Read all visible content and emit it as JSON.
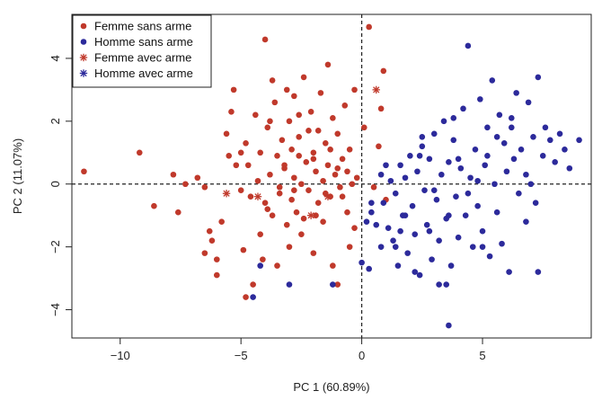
{
  "chart_data": {
    "type": "scatter",
    "xlabel": "PC 1 (60.89%)",
    "ylabel": "PC 2 (11.07%)",
    "xlim": [
      -12,
      9.5
    ],
    "ylim": [
      -4.9,
      5.4
    ],
    "x_ticks": [
      -10,
      -5,
      0,
      5
    ],
    "y_ticks": [
      -4,
      -2,
      0,
      2,
      4
    ],
    "x_tick_labels": [
      "−10",
      "−5",
      "0",
      "5"
    ],
    "y_tick_labels": [
      "−4",
      "−2",
      "0",
      "2",
      "4"
    ],
    "reference_lines": [
      {
        "axis": "x",
        "value": 0,
        "style": "dashed"
      },
      {
        "axis": "y",
        "value": 0,
        "style": "dashed"
      }
    ],
    "legend": {
      "placement": "top-left",
      "entries": [
        {
          "label": "Femme sans arme",
          "marker": "dot",
          "color": "#c0392b"
        },
        {
          "label": "Homme sans arme",
          "marker": "dot",
          "color": "#2c2a9b"
        },
        {
          "label": "Femme avec arme",
          "marker": "asterisk",
          "color": "#c0392b"
        },
        {
          "label": "Homme avec arme",
          "marker": "asterisk",
          "color": "#2c2a9b"
        }
      ]
    },
    "colors": {
      "femme": "#c0392b",
      "homme": "#2c2a9b"
    },
    "series": [
      {
        "name": "Femme sans arme",
        "marker": "dot",
        "color": "#c0392b",
        "points": [
          [
            -11.5,
            0.4
          ],
          [
            -9.2,
            1.0
          ],
          [
            -8.6,
            -0.7
          ],
          [
            -7.8,
            0.3
          ],
          [
            -7.6,
            -0.9
          ],
          [
            -7.3,
            0.0
          ],
          [
            -6.8,
            0.2
          ],
          [
            -6.5,
            -0.1
          ],
          [
            -6.3,
            -1.5
          ],
          [
            -6.2,
            -1.8
          ],
          [
            -6.0,
            -2.4
          ],
          [
            -6.0,
            -2.9
          ],
          [
            -5.8,
            -1.2
          ],
          [
            -5.6,
            1.6
          ],
          [
            -5.5,
            0.9
          ],
          [
            -5.3,
            3.0
          ],
          [
            -5.2,
            0.6
          ],
          [
            -5.0,
            -0.2
          ],
          [
            -4.9,
            -2.1
          ],
          [
            -4.8,
            1.3
          ],
          [
            -4.7,
            0.6
          ],
          [
            -4.6,
            -0.4
          ],
          [
            -4.5,
            -3.2
          ],
          [
            -4.4,
            2.2
          ],
          [
            -4.3,
            0.1
          ],
          [
            -4.2,
            -1.6
          ],
          [
            -4.1,
            -2.4
          ],
          [
            -4.0,
            4.6
          ],
          [
            -3.9,
            1.8
          ],
          [
            -3.9,
            -0.8
          ],
          [
            -3.8,
            0.3
          ],
          [
            -3.7,
            -1.0
          ],
          [
            -3.6,
            2.6
          ],
          [
            -3.5,
            -2.6
          ],
          [
            -3.5,
            0.9
          ],
          [
            -3.4,
            -0.3
          ],
          [
            -3.3,
            1.4
          ],
          [
            -3.2,
            0.5
          ],
          [
            -3.1,
            3.0
          ],
          [
            -3.1,
            -1.3
          ],
          [
            -3.0,
            2.0
          ],
          [
            -2.9,
            -0.5
          ],
          [
            -2.9,
            1.1
          ],
          [
            -2.8,
            0.2
          ],
          [
            -2.8,
            2.8
          ],
          [
            -2.7,
            -0.9
          ],
          [
            -2.6,
            1.5
          ],
          [
            -2.5,
            0.0
          ],
          [
            -2.5,
            -1.6
          ],
          [
            -2.4,
            3.4
          ],
          [
            -2.3,
            0.7
          ],
          [
            -2.2,
            -0.2
          ],
          [
            -2.1,
            2.3
          ],
          [
            -2.0,
            1.0
          ],
          [
            -2.0,
            -2.2
          ],
          [
            -1.9,
            0.4
          ],
          [
            -1.8,
            1.7
          ],
          [
            -1.8,
            -0.6
          ],
          [
            -1.7,
            2.9
          ],
          [
            -1.6,
            0.1
          ],
          [
            -1.6,
            -1.2
          ],
          [
            -1.5,
            1.3
          ],
          [
            -1.4,
            3.8
          ],
          [
            -1.4,
            0.6
          ],
          [
            -1.3,
            -0.4
          ],
          [
            -1.2,
            2.1
          ],
          [
            -1.2,
            -2.6
          ],
          [
            -1.1,
            0.3
          ],
          [
            -1.0,
            1.6
          ],
          [
            -1.0,
            -3.2
          ],
          [
            -0.9,
            -0.1
          ],
          [
            -0.8,
            0.8
          ],
          [
            -0.7,
            2.5
          ],
          [
            -0.6,
            -0.9
          ],
          [
            -0.5,
            1.1
          ],
          [
            -0.5,
            -2.0
          ],
          [
            -0.4,
            0.0
          ],
          [
            -0.3,
            3.0
          ],
          [
            -0.3,
            -1.4
          ],
          [
            -0.2,
            0.2
          ],
          [
            0.1,
            1.8
          ],
          [
            0.3,
            5.0
          ],
          [
            0.5,
            -0.1
          ],
          [
            0.7,
            1.2
          ],
          [
            0.8,
            2.4
          ],
          [
            1.0,
            -0.5
          ],
          [
            0.9,
            3.6
          ],
          [
            -3.4,
            -0.1
          ],
          [
            -2.6,
            0.9
          ],
          [
            -4.8,
            -3.6
          ],
          [
            -6.5,
            -2.2
          ],
          [
            -3.0,
            -2.0
          ],
          [
            -1.9,
            -1.0
          ],
          [
            -5.4,
            2.3
          ],
          [
            -4.2,
            1.0
          ],
          [
            -2.2,
            1.7
          ],
          [
            -0.8,
            -0.4
          ],
          [
            -3.7,
            3.3
          ],
          [
            -2.4,
            -1.1
          ],
          [
            -1.5,
            -0.3
          ],
          [
            -4.0,
            -0.6
          ],
          [
            -3.2,
            0.6
          ],
          [
            -2.0,
            0.8
          ],
          [
            -1.0,
            0.5
          ],
          [
            -5.0,
            1.0
          ],
          [
            -3.8,
            2.0
          ],
          [
            -2.6,
            2.2
          ],
          [
            -1.3,
            1.1
          ],
          [
            -0.6,
            0.4
          ],
          [
            -2.8,
            -0.2
          ]
        ]
      },
      {
        "name": "Homme sans arme",
        "marker": "dot",
        "color": "#2c2a9b",
        "points": [
          [
            0.2,
            -1.2
          ],
          [
            0.4,
            -0.9
          ],
          [
            0.6,
            -1.3
          ],
          [
            0.8,
            -2.0
          ],
          [
            0.9,
            -0.6
          ],
          [
            1.1,
            -1.4
          ],
          [
            1.2,
            0.1
          ],
          [
            1.3,
            -1.8
          ],
          [
            1.4,
            -0.3
          ],
          [
            1.5,
            -2.6
          ],
          [
            1.6,
            0.6
          ],
          [
            1.7,
            -1.0
          ],
          [
            1.8,
            0.2
          ],
          [
            1.9,
            -2.2
          ],
          [
            2.0,
            0.9
          ],
          [
            2.1,
            -0.7
          ],
          [
            2.2,
            -1.6
          ],
          [
            2.3,
            0.4
          ],
          [
            2.4,
            -2.9
          ],
          [
            2.5,
            1.2
          ],
          [
            2.6,
            -0.2
          ],
          [
            2.7,
            -1.3
          ],
          [
            2.8,
            0.8
          ],
          [
            2.9,
            -2.4
          ],
          [
            3.0,
            1.6
          ],
          [
            3.1,
            -0.5
          ],
          [
            3.2,
            -1.8
          ],
          [
            3.3,
            0.3
          ],
          [
            3.4,
            2.0
          ],
          [
            3.5,
            -1.1
          ],
          [
            3.6,
            0.7
          ],
          [
            3.7,
            -2.6
          ],
          [
            3.8,
            1.4
          ],
          [
            3.9,
            -0.4
          ],
          [
            4.0,
            -1.7
          ],
          [
            4.1,
            0.5
          ],
          [
            4.2,
            2.4
          ],
          [
            4.3,
            -1.0
          ],
          [
            4.4,
            4.4
          ],
          [
            4.5,
            0.2
          ],
          [
            4.6,
            -2.0
          ],
          [
            4.7,
            1.1
          ],
          [
            4.8,
            -0.7
          ],
          [
            4.9,
            2.7
          ],
          [
            5.0,
            -1.5
          ],
          [
            5.1,
            0.6
          ],
          [
            5.2,
            1.8
          ],
          [
            5.3,
            -2.3
          ],
          [
            5.4,
            3.3
          ],
          [
            5.5,
            0.0
          ],
          [
            5.6,
            -0.9
          ],
          [
            5.7,
            2.2
          ],
          [
            5.8,
            -1.9
          ],
          [
            5.9,
            1.3
          ],
          [
            6.0,
            0.4
          ],
          [
            6.1,
            -2.8
          ],
          [
            6.2,
            1.8
          ],
          [
            6.3,
            0.8
          ],
          [
            6.4,
            2.9
          ],
          [
            6.5,
            -0.3
          ],
          [
            6.6,
            1.1
          ],
          [
            6.8,
            0.3
          ],
          [
            6.9,
            2.6
          ],
          [
            7.1,
            1.5
          ],
          [
            7.2,
            -0.6
          ],
          [
            7.3,
            3.4
          ],
          [
            7.3,
            -2.8
          ],
          [
            7.5,
            0.9
          ],
          [
            7.6,
            1.8
          ],
          [
            7.8,
            1.4
          ],
          [
            8.0,
            0.7
          ],
          [
            8.2,
            1.6
          ],
          [
            8.4,
            1.1
          ],
          [
            8.6,
            0.5
          ],
          [
            9.0,
            1.4
          ],
          [
            -4.2,
            -2.6
          ],
          [
            -3.0,
            -3.2
          ],
          [
            -1.2,
            -3.2
          ],
          [
            -4.5,
            -3.6
          ],
          [
            0.0,
            -2.5
          ],
          [
            0.3,
            -2.7
          ],
          [
            3.6,
            -4.5
          ],
          [
            3.2,
            -3.2
          ],
          [
            3.5,
            -3.2
          ],
          [
            5.0,
            -2.0
          ],
          [
            2.2,
            -2.8
          ],
          [
            1.8,
            -1.0
          ],
          [
            4.0,
            0.8
          ],
          [
            2.5,
            1.5
          ],
          [
            1.0,
            0.6
          ],
          [
            3.0,
            -0.2
          ],
          [
            4.8,
            0.1
          ],
          [
            6.8,
            -1.2
          ],
          [
            5.6,
            1.5
          ],
          [
            1.4,
            -2.0
          ],
          [
            0.8,
            0.3
          ],
          [
            2.8,
            -1.5
          ],
          [
            3.6,
            -1.0
          ],
          [
            4.4,
            -0.3
          ],
          [
            5.2,
            0.9
          ],
          [
            6.2,
            2.1
          ],
          [
            7.0,
            0.0
          ],
          [
            0.4,
            -0.6
          ],
          [
            1.6,
            -1.5
          ],
          [
            2.4,
            0.9
          ],
          [
            3.8,
            2.1
          ]
        ]
      },
      {
        "name": "Femme avec arme",
        "marker": "asterisk",
        "color": "#c0392b",
        "points": [
          [
            -5.6,
            -0.3
          ],
          [
            -4.3,
            -0.4
          ],
          [
            -2.1,
            -1.0
          ],
          [
            -1.4,
            -0.4
          ],
          [
            0.6,
            3.0
          ]
        ]
      },
      {
        "name": "Homme avec arme",
        "marker": "asterisk",
        "color": "#2c2a9b",
        "points": []
      }
    ]
  }
}
